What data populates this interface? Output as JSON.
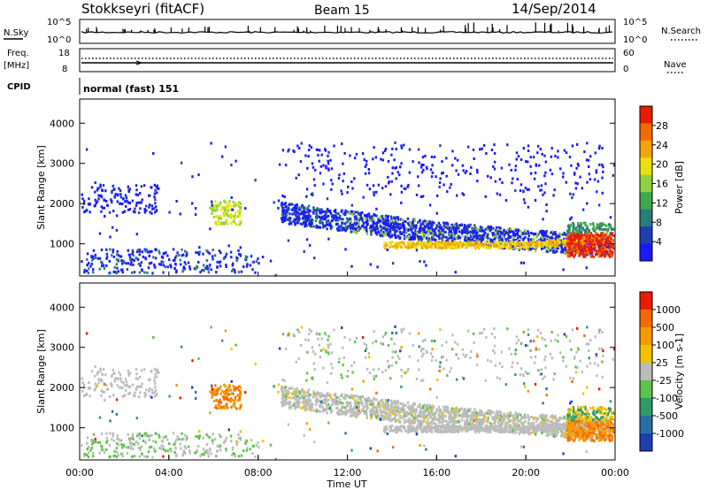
{
  "header": {
    "title": "Stokkseyri (fitACF)",
    "beam": "Beam 15",
    "date": "14/Sep/2014"
  },
  "top_panels": {
    "nsky_label": "N.Sky",
    "nsearch_label": "N.Search",
    "nsky_ticks": [
      "10^5",
      "10^0"
    ],
    "nsearch_ticks": [
      "10^5",
      "10^0"
    ],
    "freq_label": "Freq.",
    "freq_unit": "[MHz]",
    "freq_ticks": [
      "18",
      "8"
    ],
    "nave_label": "Nave",
    "nave_ticks": [
      "60",
      "0"
    ],
    "cpid_label": "CPID",
    "cpid_value": "normal (fast) 151"
  },
  "chart_data": [
    {
      "type": "heatmap",
      "panel": "power",
      "ylabel": "Slant Range [km]",
      "xlabel": "",
      "yticks": [
        1000,
        2000,
        3000,
        4000
      ],
      "ylim": [
        200,
        4600
      ],
      "xlim": [
        0,
        24
      ],
      "colorbar_label": "Power [dB]",
      "colorbar_ticks": [
        "28",
        "24",
        "20",
        "16",
        "12",
        "8",
        "4"
      ],
      "colors": [
        "#1a1aff",
        "#1f3fb0",
        "#2a7c78",
        "#3fa84a",
        "#8fd13f",
        "#e9e10c",
        "#f5a30a",
        "#f56a00",
        "#e81c00"
      ]
    },
    {
      "type": "heatmap",
      "panel": "velocity",
      "ylabel": "Slant Range [km]",
      "xlabel": "Time UT",
      "yticks": [
        1000,
        2000,
        3000,
        4000
      ],
      "ylim": [
        200,
        4600
      ],
      "xlim": [
        0,
        24
      ],
      "xticks": [
        "00:00",
        "04:00",
        "08:00",
        "12:00",
        "16:00",
        "20:00",
        "00:00"
      ],
      "colorbar_label": "Velocity [m s-1]",
      "colorbar_ticks": [
        "1000",
        "500",
        "100",
        "25",
        "-25",
        "-100",
        "-500",
        "-1000"
      ],
      "colors": [
        "#1f3fb0",
        "#2a6fa8",
        "#2f9a6a",
        "#5fc24a",
        "#bcbcbc",
        "#f5c000",
        "#f59a00",
        "#f56a00",
        "#e81c00"
      ]
    }
  ]
}
